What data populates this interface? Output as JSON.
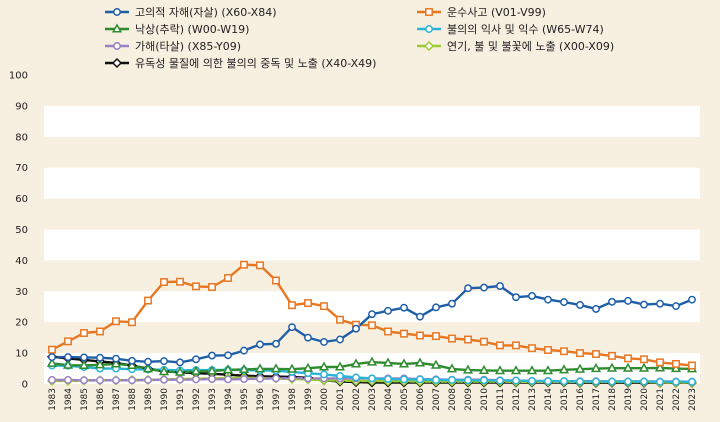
{
  "chart_data": {
    "type": "line",
    "title": "",
    "xlabel": "",
    "ylabel": "",
    "ylim": [
      0,
      100
    ],
    "yticks": [
      0,
      10,
      20,
      30,
      40,
      50,
      60,
      70,
      80,
      90,
      100
    ],
    "grid": "horizontal bands",
    "legend_position": "top",
    "background_color": "#f7efdf",
    "band_color": "#ffffff",
    "categories": [
      "1983",
      "1984",
      "1985",
      "1986",
      "1987",
      "1988",
      "1989",
      "1990",
      "1991",
      "1992",
      "1993",
      "1994",
      "1995",
      "1996",
      "1997",
      "1998",
      "1999",
      "2000",
      "2001",
      "2002",
      "2003",
      "2004",
      "2005",
      "2006",
      "2007",
      "2008",
      "2009",
      "2010",
      "2011",
      "2012",
      "2013",
      "2014",
      "2015",
      "2016",
      "2017",
      "2018",
      "2019",
      "2020",
      "2021",
      "2022",
      "2023"
    ],
    "series": [
      {
        "name": "고의적 자해(자살) (X60-X84)",
        "color": "#1f5fa8",
        "values": [
          8.7,
          8.7,
          8.6,
          8.5,
          8.2,
          7.5,
          7.2,
          7.4,
          7.0,
          8.0,
          9.2,
          9.3,
          10.8,
          12.8,
          13.0,
          18.4,
          15.0,
          13.6,
          14.4,
          17.9,
          22.6,
          23.7,
          24.7,
          21.8,
          24.8,
          26.0,
          31.0,
          31.2,
          31.7,
          28.1,
          28.5,
          27.3,
          26.5,
          25.6,
          24.3,
          26.6,
          26.9,
          25.7,
          26.0,
          25.2,
          27.3
        ]
      },
      {
        "name": "운수사고 (V01-V99)",
        "color": "#e87722",
        "values": [
          11.1,
          13.8,
          16.5,
          17.0,
          20.3,
          20.0,
          27.0,
          33.0,
          33.1,
          31.6,
          31.4,
          34.3,
          38.6,
          38.4,
          33.5,
          25.5,
          26.2,
          25.2,
          20.8,
          19.2,
          19.0,
          17.0,
          16.3,
          15.7,
          15.5,
          14.7,
          14.4,
          13.7,
          12.5,
          12.5,
          11.6,
          11.0,
          10.6,
          10.0,
          9.7,
          9.1,
          8.3,
          8.0,
          7.0,
          6.5,
          6.0
        ]
      },
      {
        "name": "낙상(추락) (W00-W19)",
        "color": "#2e8b2e",
        "values": [
          6.7,
          6.1,
          6.0,
          6.2,
          6.5,
          6.0,
          4.9,
          4.0,
          3.8,
          4.1,
          4.2,
          4.6,
          4.7,
          4.9,
          4.9,
          4.8,
          5.1,
          5.5,
          5.5,
          6.5,
          7.1,
          6.8,
          6.5,
          6.8,
          6.1,
          4.9,
          4.5,
          4.4,
          4.3,
          4.3,
          4.3,
          4.3,
          4.6,
          4.8,
          5.0,
          5.1,
          5.1,
          5.1,
          5.2,
          5.0,
          4.9
        ]
      },
      {
        "name": "불의의 익사 및 익수 (W65-W74)",
        "color": "#29b3d8",
        "values": [
          6.0,
          5.9,
          5.5,
          5.0,
          5.0,
          4.8,
          4.7,
          4.6,
          4.4,
          4.5,
          4.5,
          4.6,
          4.5,
          4.4,
          4.3,
          3.9,
          3.5,
          3.1,
          2.6,
          2.1,
          1.8,
          1.6,
          1.5,
          1.5,
          1.3,
          1.3,
          1.2,
          1.2,
          1.1,
          1.1,
          1.0,
          0.9,
          0.9,
          0.8,
          0.8,
          0.8,
          0.8,
          0.8,
          0.7,
          0.7,
          0.7
        ]
      },
      {
        "name": "가해(타살) (X85-Y09)",
        "color": "#9b7fc4",
        "values": [
          1.3,
          1.3,
          1.2,
          1.2,
          1.2,
          1.2,
          1.3,
          1.4,
          1.4,
          1.5,
          1.6,
          1.5,
          1.6,
          1.7,
          1.8,
          1.9,
          1.8,
          1.8,
          1.8,
          1.8,
          1.8,
          1.8,
          1.8,
          1.6,
          1.5,
          1.4,
          1.4,
          1.4,
          1.2,
          1.1,
          1.0,
          1.0,
          0.9,
          0.9,
          0.9,
          0.8,
          0.8,
          0.8,
          0.8,
          0.8,
          0.7
        ]
      },
      {
        "name": "연기, 불 및 불꽃에 노출 (X00-X09)",
        "color": "#9acd32",
        "values": [
          1.0,
          1.0,
          1.1,
          1.2,
          1.2,
          1.3,
          1.3,
          1.5,
          1.6,
          1.7,
          1.8,
          1.9,
          2.0,
          1.9,
          1.8,
          1.6,
          1.5,
          1.2,
          1.1,
          1.0,
          1.0,
          0.9,
          0.9,
          0.8,
          0.8,
          0.8,
          0.8,
          0.8,
          0.8,
          0.7,
          0.7,
          0.7,
          0.7,
          0.6,
          0.6,
          0.6,
          0.6,
          0.6,
          0.5,
          0.5,
          0.5
        ]
      },
      {
        "name": "유독성 물질에 의한 불의의 중독 및 노출 (X40-X49)",
        "color": "#111111",
        "values": [
          8.8,
          8.3,
          7.8,
          7.3,
          6.8,
          6.0,
          5.0,
          4.2,
          3.8,
          3.5,
          3.3,
          3.0,
          2.7,
          2.5,
          2.4,
          2.3,
          2.0,
          1.2,
          0.8,
          0.6,
          0.5,
          0.5,
          0.5,
          0.5,
          0.5,
          0.5,
          0.5,
          0.5,
          0.5,
          0.5,
          0.5,
          0.5,
          0.5,
          0.4,
          0.4,
          0.4,
          0.4,
          0.4,
          0.4,
          0.4,
          0.4
        ]
      }
    ]
  }
}
